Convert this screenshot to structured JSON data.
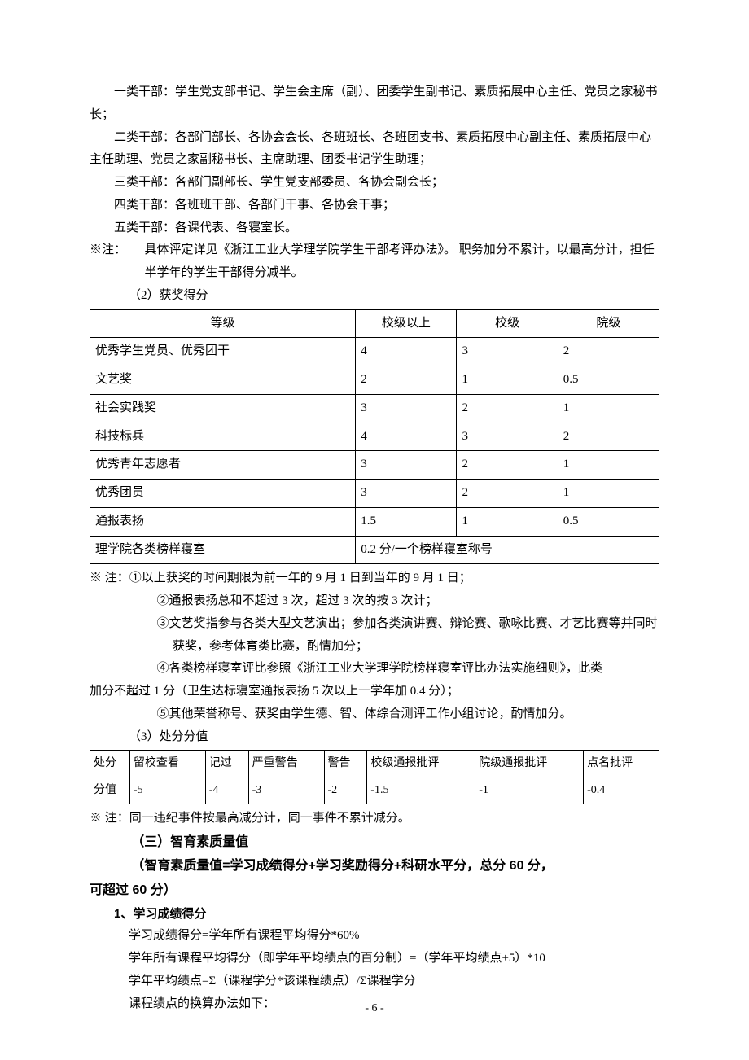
{
  "p1": "一类干部：学生党支部书记、学生会主席（副）、团委学生副书记、素质拓展中心主任、党员之家秘书长；",
  "p2": "二类干部：各部门部长、各协会会长、各班班长、各班团支书、素质拓展中心副主任、素质拓展中心主任助理、党员之家副秘书长、主席助理、团委书记学生助理；",
  "p3": "三类干部：各部门副部长、学生党支部委员、各协会副会长；",
  "p4": "四类干部：各班班干部、各部门干事、各协会干事；",
  "p5": "五类干部：各课代表、各寝室长。",
  "note1_marker": "※注：",
  "note1_body": "具体评定详见《浙江工业大学理学院学生干部考评办法》。 职务加分不累计，以最高分计，担任半学年的学生干部得分减半。",
  "sec2_title": "（2）获奖得分",
  "table1": {
    "headers": [
      "等级",
      "校级以上",
      "校级",
      "院级"
    ],
    "rows": [
      [
        "优秀学生党员、优秀团干",
        "4",
        "3",
        "2"
      ],
      [
        "文艺奖",
        "2",
        "1",
        "0.5"
      ],
      [
        "社会实践奖",
        "3",
        "2",
        "1"
      ],
      [
        "科技标兵",
        "4",
        "3",
        "2"
      ],
      [
        "优秀青年志愿者",
        "3",
        "2",
        "1"
      ],
      [
        "优秀团员",
        "3",
        "2",
        "1"
      ],
      [
        "通报表扬",
        "1.5",
        "1",
        "0.5"
      ]
    ],
    "last_row": [
      "理学院各类榜样寝室",
      "0.2 分/一个榜样寝室称号"
    ]
  },
  "note2_prefix": "※ 注：",
  "note2_items": [
    "①以上获奖的时间期限为前一年的 9 月 1 日到当年的 9 月 1 日；",
    "②通报表扬总和不超过 3 次，超过 3 次的按 3 次计；",
    "③文艺奖指参与各类大型文艺演出；参加各类演讲赛、辩论赛、歌咏比赛、才艺比赛等并同时获奖，参考体育类比赛，酌情加分；",
    "④各类榜样寝室评比参照《浙江工业大学理学院榜样寝室评比办法实施细则》，此类加分不超过 1 分（卫生达标寝室通报表扬 5 次以上一学年加 0.4 分）；",
    "⑤其他荣誉称号、获奖由学生德、智、体综合测评工作小组讨论，酌情加分。"
  ],
  "sec3_title": "（3）处分分值",
  "table2": {
    "headers": [
      "处分",
      "留校查看",
      "记过",
      "严重警告",
      "警告",
      "校级通报批评",
      "院级通报批评",
      "点名批评"
    ],
    "row": [
      "分值",
      "-5",
      "-4",
      "-3",
      "-2",
      "-1.5",
      "-1",
      "-0.4"
    ]
  },
  "note3": "※ 注：同一违纪事件按最高减分计，同一事件不累计减分。",
  "heading_main": "（三）智育素质量值",
  "heading_formula": "（智育素质量值=学习成绩得分+学习奖励得分+科研水平分，总分 60 分，可超过 60 分）",
  "sec_study": "1、学习成绩得分",
  "calc1": "学习成绩得分=学年所有课程平均得分*60%",
  "calc2": "学年所有课程平均得分（即学年平均绩点的百分制）=（学年平均绩点+5）*10",
  "calc3": "学年平均绩点=Σ（课程学分*该课程绩点）/Σ课程学分",
  "calc4": "课程绩点的换算办法如下：",
  "page_num": "- 6 -",
  "colors": {
    "text": "#000000",
    "bg": "#ffffff",
    "border": "#000000"
  }
}
